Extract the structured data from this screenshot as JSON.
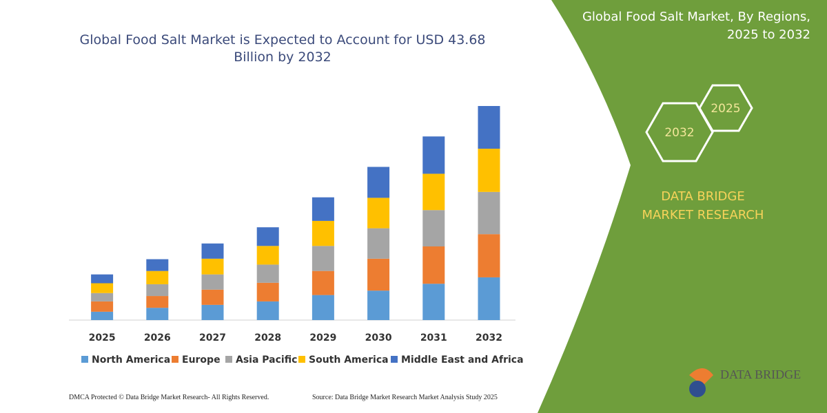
{
  "chart_data": {
    "type": "stacked-bar",
    "title": "Global Food Salt Market is Expected to Account for USD 43.68 Billion by 2032",
    "categories": [
      "2025",
      "2026",
      "2027",
      "2028",
      "2029",
      "2030",
      "2031",
      "2032"
    ],
    "series": [
      {
        "name": "North America",
        "color": "#5b9bd5",
        "values": [
          1.7,
          2.5,
          3.1,
          3.8,
          5.1,
          6.0,
          7.4,
          8.7
        ]
      },
      {
        "name": "Europe",
        "color": "#ed7d31",
        "values": [
          2.1,
          2.4,
          3.1,
          3.8,
          4.9,
          6.5,
          7.6,
          8.8
        ]
      },
      {
        "name": "Asia Pacific",
        "color": "#a5a5a5",
        "values": [
          1.7,
          2.4,
          3.1,
          3.7,
          5.1,
          6.2,
          7.4,
          8.6
        ]
      },
      {
        "name": "South America",
        "color": "#ffc000",
        "values": [
          2.0,
          2.7,
          3.2,
          3.8,
          5.1,
          6.2,
          7.4,
          8.8
        ]
      },
      {
        "name": "Middle East and Africa",
        "color": "#4472c4",
        "values": [
          1.8,
          2.4,
          3.1,
          3.8,
          4.8,
          6.3,
          7.6,
          8.7
        ]
      }
    ]
  },
  "panel": {
    "title": "Global Food Salt Market, By Regions, 2025 to 2032",
    "hexagons": [
      "2025",
      "2032"
    ],
    "brand": "DATA BRIDGE MARKET RESEARCH"
  },
  "logo": "DATA BRIDGE",
  "footer": {
    "left": "DMCA Protected © Data Bridge Market Research- All Rights Reserved.",
    "right": "Source: Data Bridge Market Research Market Analysis Study 2025"
  }
}
